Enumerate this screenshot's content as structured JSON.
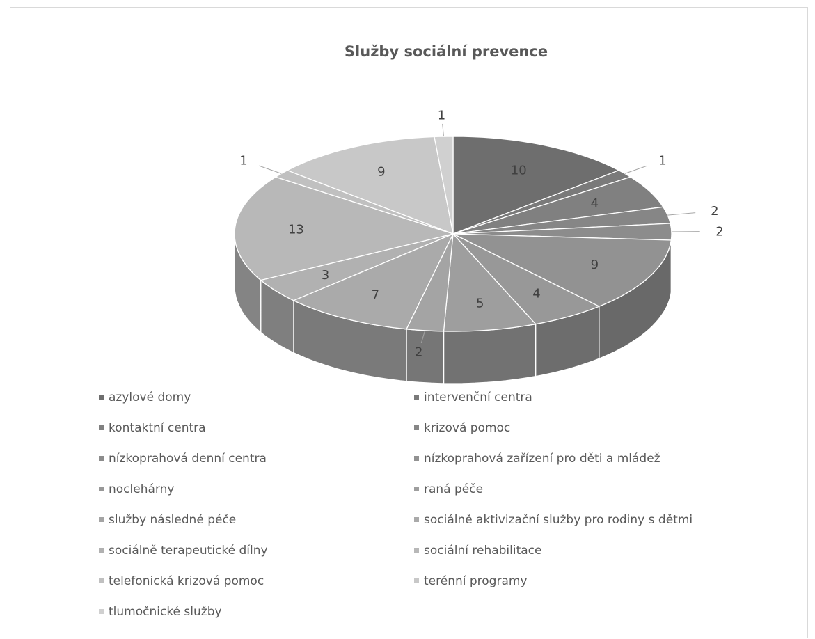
{
  "chart_data": {
    "type": "pie",
    "title": "Služby sociální prevence",
    "legend_position": "bottom",
    "categories": [
      "azylové domy",
      "intervenční centra",
      "kontaktní centra",
      "krizová pomoc",
      "nízkoprahová denní centra",
      "nízkoprahová zařízení pro děti a mládež",
      "noclehárny",
      "raná péče",
      "služby následné péče",
      "sociálně aktivizační služby pro rodiny s dětmi",
      "sociálně terapeutické dílny",
      "sociální rehabilitace",
      "telefonická krizová pomoc",
      "terénní programy",
      "tlumočnické služby"
    ],
    "values": [
      10,
      1,
      4,
      2,
      2,
      9,
      4,
      5,
      2,
      7,
      3,
      13,
      1,
      9,
      1
    ],
    "colors": [
      "#6e6e6e",
      "#7a7a7a",
      "#808080",
      "#868686",
      "#8c8c8c",
      "#929292",
      "#989898",
      "#9e9e9e",
      "#a4a4a4",
      "#aaaaaa",
      "#b1b1b1",
      "#b8b8b8",
      "#c0c0c0",
      "#c8c8c8",
      "#d0d0d0"
    ]
  }
}
